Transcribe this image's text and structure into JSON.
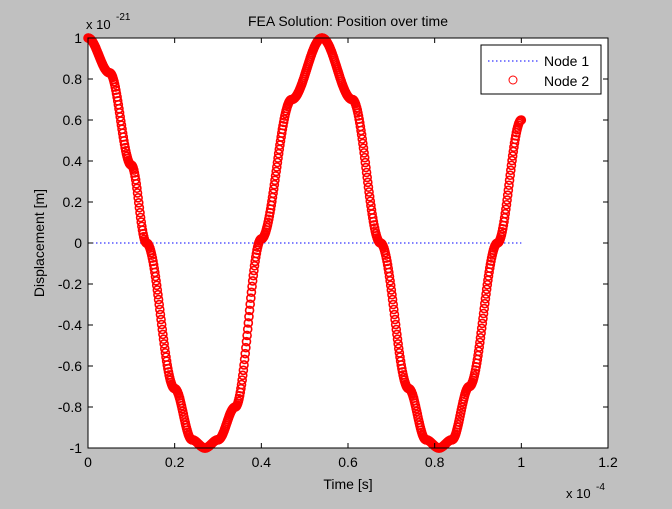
{
  "figure": {
    "background": "#c0c0c0"
  },
  "chart_data": {
    "type": "line",
    "title": "FEA Solution: Position over time",
    "xlabel": "Time [s]",
    "ylabel": "Displacement [m]",
    "x_multiplier_label": "x 10",
    "x_multiplier_exp": "-4",
    "y_multiplier_label": "x 10",
    "y_multiplier_exp": "-21",
    "xlim": [
      0,
      1.2
    ],
    "ylim": [
      -1,
      1
    ],
    "xticks": [
      0,
      0.2,
      0.4,
      0.6,
      0.8,
      1,
      1.2
    ],
    "xtick_labels": [
      "0",
      "0.2",
      "0.4",
      "0.6",
      "0.8",
      "1",
      "1.2"
    ],
    "yticks": [
      -1,
      -0.8,
      -0.6,
      -0.4,
      -0.2,
      0,
      0.2,
      0.4,
      0.6,
      0.8,
      1
    ],
    "ytick_labels": [
      "-1",
      "-0.8",
      "-0.6",
      "-0.4",
      "-0.2",
      "0",
      "0.2",
      "0.4",
      "0.6",
      "0.8",
      "1"
    ],
    "grid": false,
    "legend_position": "top-right",
    "series": [
      {
        "name": "Node 1",
        "style": "dotted-line",
        "color": "#0000ff",
        "x": [
          0,
          0.2,
          0.4,
          0.6,
          0.8,
          1.0
        ],
        "y": [
          0,
          0,
          0,
          0,
          0,
          0
        ]
      },
      {
        "name": "Node 2",
        "style": "circle-markers",
        "color": "#ff0000",
        "x": [
          0,
          0.05,
          0.1,
          0.135,
          0.2,
          0.24,
          0.27,
          0.3,
          0.34,
          0.4,
          0.47,
          0.54,
          0.61,
          0.675,
          0.74,
          0.78,
          0.81,
          0.84,
          0.88,
          0.945,
          1.0
        ],
        "y": [
          1,
          0.83,
          0.38,
          0,
          -0.71,
          -0.96,
          -1,
          -0.96,
          -0.8,
          0.02,
          0.7,
          1,
          0.7,
          0,
          -0.71,
          -0.96,
          -1,
          -0.96,
          -0.7,
          0,
          0.6
        ]
      }
    ]
  }
}
